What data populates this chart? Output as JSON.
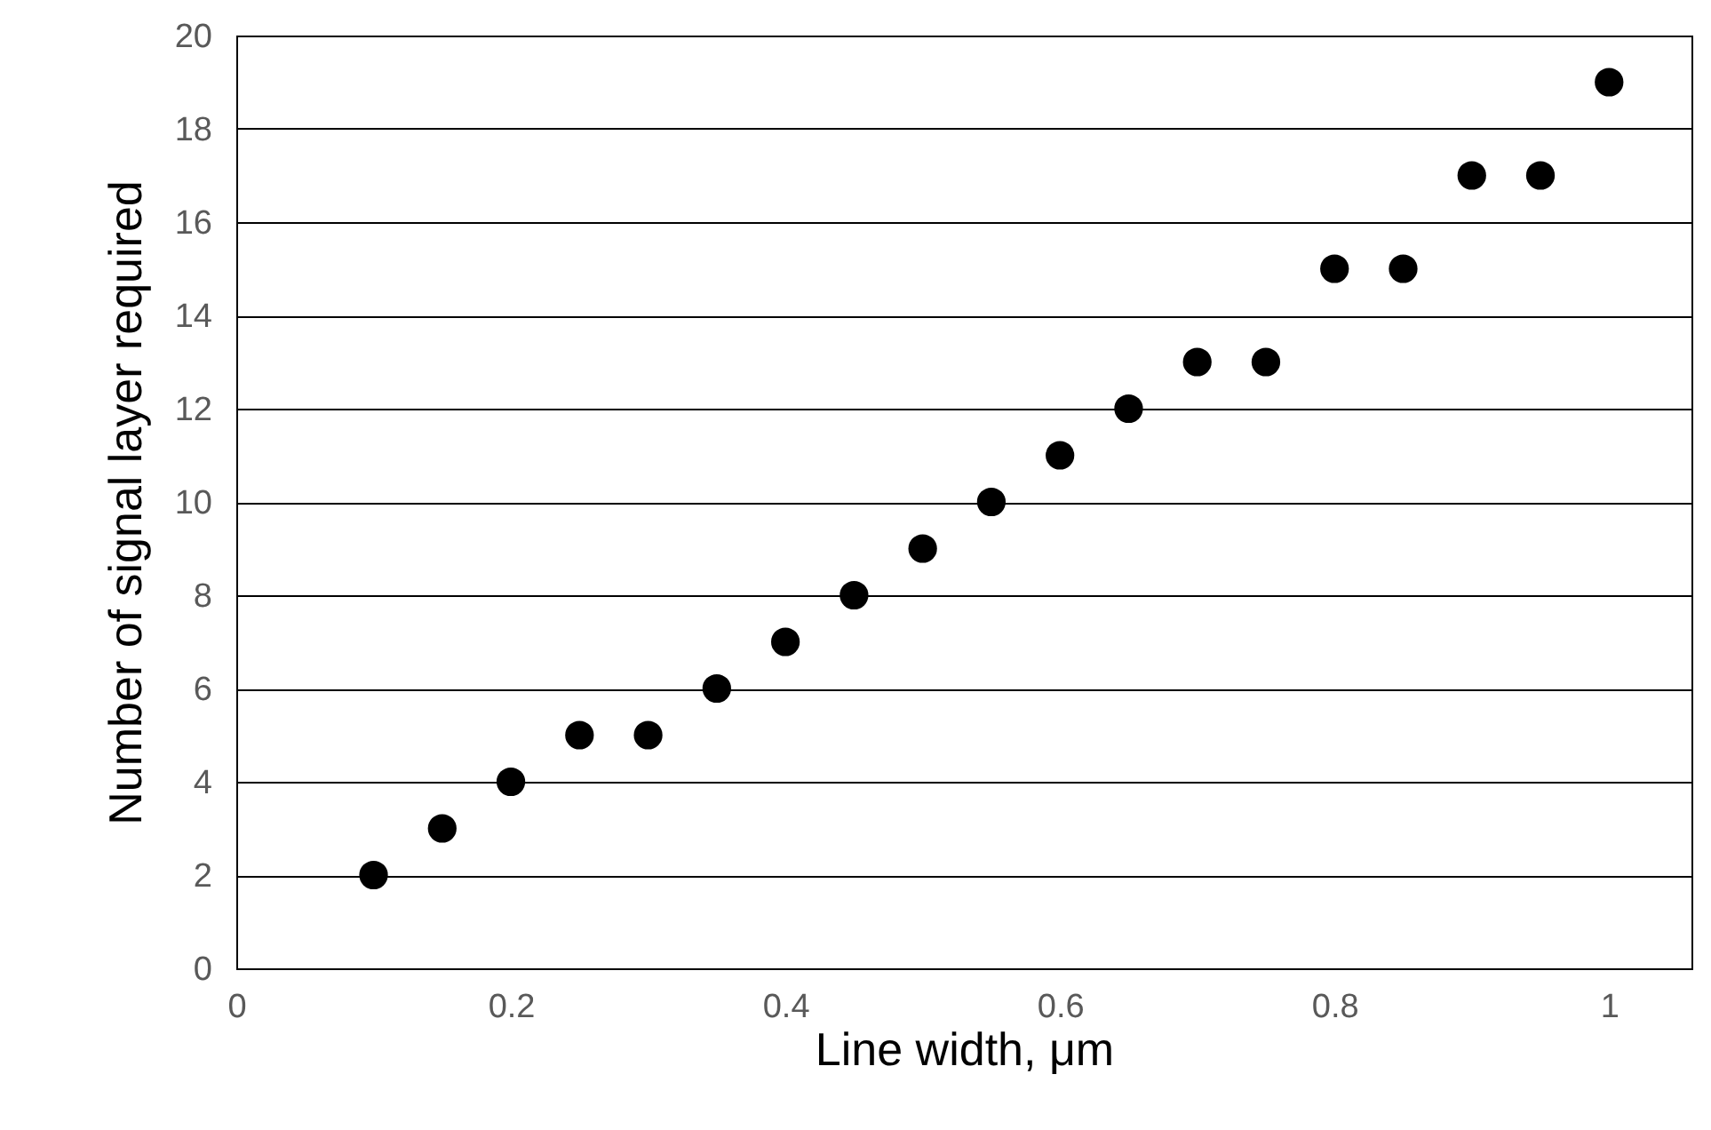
{
  "chart_data": {
    "type": "scatter",
    "xlabel": "Line width, μm",
    "ylabel": "Number of signal layer required",
    "x": [
      0.1,
      0.15,
      0.2,
      0.25,
      0.3,
      0.35,
      0.4,
      0.45,
      0.5,
      0.55,
      0.6,
      0.65,
      0.7,
      0.75,
      0.8,
      0.85,
      0.9,
      0.95,
      1.0
    ],
    "series": [
      {
        "color": "#000000",
        "values": [
          2,
          3,
          4,
          5,
          5,
          6,
          7,
          8,
          9,
          10,
          11,
          12,
          13,
          13,
          15,
          15,
          17,
          17,
          19
        ]
      }
    ],
    "xlim": [
      0,
      1.06
    ],
    "xticks": [
      0,
      0.2,
      0.4,
      0.6,
      0.8,
      1
    ],
    "ylim": [
      0,
      20
    ],
    "yticks": [
      0,
      2,
      4,
      6,
      8,
      10,
      12,
      14,
      16,
      18,
      20
    ],
    "grid": "y",
    "marker": "circle",
    "legend": false
  }
}
